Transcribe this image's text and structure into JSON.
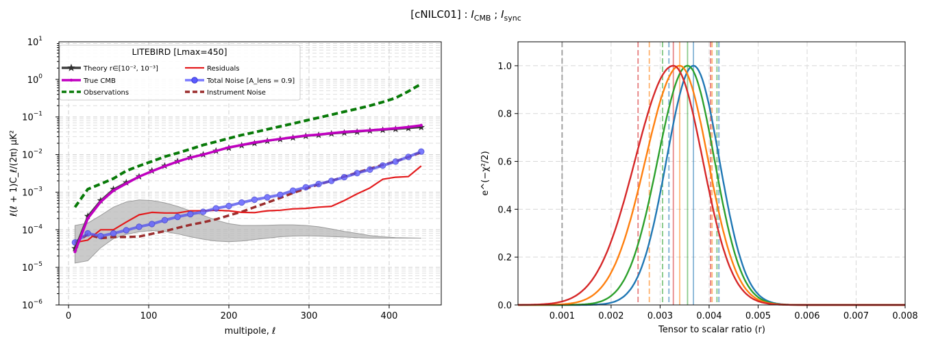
{
  "figure": {
    "suptitle_prefix": "[cNILC01] : ",
    "suptitle_sym1": "I",
    "suptitle_sub1": "CMB",
    "suptitle_sep": " ; ",
    "suptitle_sym2": "I",
    "suptitle_sub2": "sync"
  },
  "chart_data": [
    {
      "type": "line",
      "xlabel": "multipole, ℓ",
      "ylabel": "ℓ(ℓ + 1)C_ℓ/(2π)  μK²",
      "xlim": [
        -12,
        465
      ],
      "ylim": [
        1e-06,
        10
      ],
      "yscale": "log",
      "xticks": [
        0,
        100,
        200,
        300,
        400
      ],
      "yticks": [
        {
          "value": 1e-06,
          "base": "10",
          "exp": "−6"
        },
        {
          "value": 1e-05,
          "base": "10",
          "exp": "−5"
        },
        {
          "value": 0.0001,
          "base": "10",
          "exp": "−4"
        },
        {
          "value": 0.001,
          "base": "10",
          "exp": "−3"
        },
        {
          "value": 0.01,
          "base": "10",
          "exp": "−2"
        },
        {
          "value": 0.1,
          "base": "10",
          "exp": "−1"
        },
        {
          "value": 1,
          "base": "10",
          "exp": "0"
        },
        {
          "value": 10,
          "base": "10",
          "exp": "1"
        }
      ],
      "grid": true,
      "legend": {
        "title": "LITEBIRD [Lmax=450]",
        "placement": "upper-left",
        "entries": [
          {
            "label": "Theory r∈[10⁻², 10⁻³]",
            "color": "#404040",
            "style": "star"
          },
          {
            "label": "Residuals",
            "color": "#e31a1c",
            "style": "line"
          },
          {
            "label": "True CMB",
            "color": "#c000c0",
            "style": "dot"
          },
          {
            "label": "Total Noise [A_lens = 0.9]",
            "color": "#5555ee",
            "style": "circle"
          },
          {
            "label": "Observations",
            "color": "#087a08",
            "style": "dashed"
          },
          {
            "label": "Instrument Noise",
            "color": "#9b2d2d",
            "style": "dashed"
          }
        ]
      },
      "x": [
        8,
        24,
        40,
        56,
        72,
        88,
        104,
        120,
        136,
        152,
        168,
        184,
        200,
        216,
        232,
        248,
        264,
        280,
        296,
        312,
        328,
        344,
        360,
        376,
        392,
        408,
        424,
        440
      ],
      "band": {
        "color": "#b8b8b8",
        "lower": [
          1.3e-05,
          1.5e-05,
          3.3e-05,
          5.8e-05,
          7.5e-05,
          8.8e-05,
          9.5e-05,
          9e-05,
          7.8e-05,
          6.5e-05,
          5.6e-05,
          5e-05,
          4.8e-05,
          5e-05,
          5.5e-05,
          6e-05,
          6.5e-05,
          6.8e-05,
          6.9e-05,
          6.8e-05,
          6.6e-05,
          6.4e-05,
          6.2e-05,
          6e-05,
          6e-05,
          6e-05,
          6e-05,
          6e-05
        ],
        "upper": [
          0.00013,
          0.00015,
          0.00024,
          0.0004,
          0.00055,
          0.00062,
          0.0006,
          0.00052,
          0.00042,
          0.00032,
          0.00024,
          0.00018,
          0.000145,
          0.00013,
          0.00013,
          0.000132,
          0.000135,
          0.000135,
          0.00013,
          0.00012,
          0.000105,
          9e-05,
          8e-05,
          7e-05,
          6.5e-05,
          6.2e-05,
          6.1e-05,
          6e-05
        ]
      },
      "series": [
        {
          "name": "Observations",
          "color": "#087a08",
          "dash": "9,5",
          "width": 4,
          "marker": "none",
          "values": [
            0.0004,
            0.0012,
            0.00165,
            0.0023,
            0.0037,
            0.005,
            0.0066,
            0.0088,
            0.011,
            0.014,
            0.018,
            0.022,
            0.027,
            0.033,
            0.039,
            0.047,
            0.056,
            0.067,
            0.08,
            0.096,
            0.115,
            0.138,
            0.165,
            0.2,
            0.25,
            0.32,
            0.48,
            0.76
          ]
        },
        {
          "name": "Instrument Noise",
          "color": "#9b2d2d",
          "dash": "9,5",
          "width": 3.5,
          "marker": "none",
          "values": [
            4.5e-05,
            7.5e-05,
            6e-05,
            6.4e-05,
            6.4e-05,
            6.6e-05,
            7.8e-05,
            9.2e-05,
            0.000112,
            0.000135,
            0.000158,
            0.00019,
            0.00024,
            0.0003,
            0.0004,
            0.00053,
            0.0007,
            0.00095,
            0.00125,
            0.0016,
            0.002,
            0.0026,
            0.0033,
            0.0042,
            0.0053,
            0.0066,
            0.0086,
            0.0115
          ]
        },
        {
          "name": "Residuals",
          "color": "#e31a1c",
          "dash": "",
          "width": 2.2,
          "marker": "none",
          "values": [
            4.6e-05,
            5.3e-05,
            0.0001,
            0.0001,
            0.00016,
            0.00025,
            0.00029,
            0.00028,
            0.00028,
            0.00032,
            0.00032,
            0.00033,
            0.00032,
            0.00029,
            0.000285,
            0.00032,
            0.00033,
            0.00036,
            0.00037,
            0.0004,
            0.00042,
            0.0006,
            0.0009,
            0.0013,
            0.0022,
            0.0025,
            0.0026,
            0.005
          ]
        },
        {
          "name": "Total Noise [A_lens = 0.9]",
          "color": "#5555ee",
          "dash": "",
          "width": 4,
          "marker": "circle",
          "opacity": 0.8,
          "values": [
            4.6e-05,
            8e-05,
            6.8e-05,
            8e-05,
            9.7e-05,
            0.00012,
            0.000142,
            0.00018,
            0.00022,
            0.00026,
            0.0003,
            0.00037,
            0.00043,
            0.00053,
            0.00063,
            0.00073,
            0.00085,
            0.0011,
            0.00135,
            0.00165,
            0.002,
            0.0025,
            0.0032,
            0.004,
            0.0051,
            0.0065,
            0.0087,
            0.012
          ]
        },
        {
          "name": "Theory r∈[10⁻², 10⁻³]",
          "color": "#404040",
          "dash": "",
          "width": 2.5,
          "marker": "star",
          "values": [
            3.2e-05,
            0.00023,
            0.0006,
            0.0012,
            0.0018,
            0.0026,
            0.0037,
            0.005,
            0.0066,
            0.0084,
            0.01,
            0.0125,
            0.015,
            0.0175,
            0.02,
            0.023,
            0.0255,
            0.028,
            0.031,
            0.033,
            0.036,
            0.038,
            0.04,
            0.043,
            0.045,
            0.0475,
            0.05,
            0.053
          ]
        },
        {
          "name": "True CMB",
          "color": "#c000c0",
          "dash": "",
          "width": 3.5,
          "marker": "dot",
          "values": [
            2.6e-05,
            0.0002,
            0.00055,
            0.0011,
            0.0017,
            0.0026,
            0.0036,
            0.0049,
            0.0065,
            0.0083,
            0.01,
            0.0125,
            0.0155,
            0.018,
            0.021,
            0.0235,
            0.026,
            0.029,
            0.032,
            0.034,
            0.037,
            0.04,
            0.042,
            0.044,
            0.047,
            0.05,
            0.054,
            0.06
          ]
        }
      ]
    },
    {
      "type": "line",
      "xlabel": "Tensor to scalar ratio (r)",
      "ylabel": "e^(−χ²/2)",
      "xlim": [
        0.0001,
        0.008
      ],
      "ylim": [
        0.0,
        1.1
      ],
      "xticks": [
        0.001,
        0.002,
        0.003,
        0.004,
        0.005,
        0.006,
        0.007,
        0.008
      ],
      "xtick_labels": [
        "0.001",
        "0.002",
        "0.003",
        "0.004",
        "0.005",
        "0.006",
        "0.007",
        "0.008"
      ],
      "yticks": [
        0.0,
        0.2,
        0.4,
        0.6,
        0.8,
        1.0
      ],
      "ytick_labels": [
        "0.0",
        "0.2",
        "0.4",
        "0.6",
        "0.8",
        "1.0"
      ],
      "grid": true,
      "reference_line": {
        "x": 0.001,
        "color": "#888888"
      },
      "series": [
        {
          "color": "#1f77b4",
          "peak": 0.00368,
          "sigma_left": 0.00055,
          "sigma_right": 0.00053,
          "lower": 0.00318,
          "upper": 0.0042
        },
        {
          "color": "#2ca02c",
          "peak": 0.00356,
          "sigma_left": 0.00061,
          "sigma_right": 0.00055,
          "lower": 0.00305,
          "upper": 0.00416
        },
        {
          "color": "#ff7f0e",
          "peak": 0.0034,
          "sigma_left": 0.0007,
          "sigma_right": 0.00058,
          "lower": 0.00278,
          "upper": 0.00406
        },
        {
          "color": "#d62728",
          "peak": 0.00327,
          "sigma_left": 0.00078,
          "sigma_right": 0.0006,
          "lower": 0.00255,
          "upper": 0.00403
        }
      ]
    }
  ]
}
